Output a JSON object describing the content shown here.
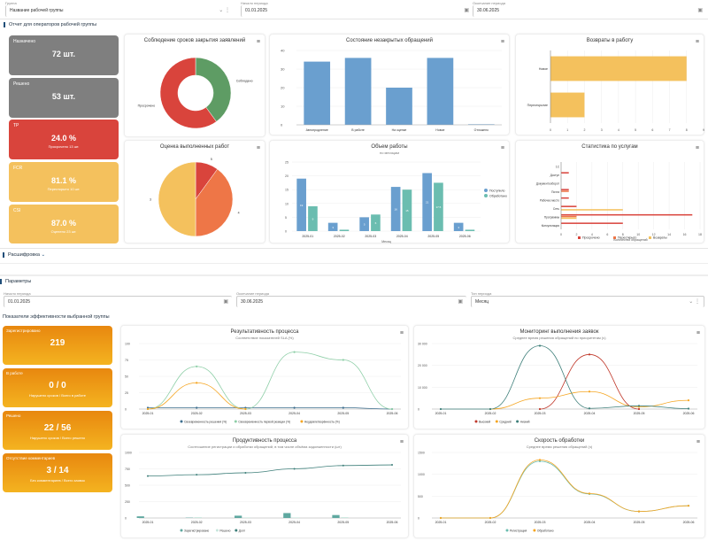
{
  "filters": {
    "group": {
      "label": "Группа",
      "value": "Название рабочей группы"
    },
    "date_from": {
      "label": "Начало периода",
      "value": "01.01.2025"
    },
    "date_to": {
      "label": "Окончание периода",
      "value": "30.06.2025"
    }
  },
  "section1": {
    "title": "Отчет для операторов рабочей группы"
  },
  "kpi": [
    {
      "title": "Назначено",
      "value": "72 шт.",
      "sub": "",
      "color": "#7f7f7f"
    },
    {
      "title": "Решено",
      "value": "53 шт.",
      "sub": "",
      "color": "#7f7f7f"
    },
    {
      "title": "TP",
      "value": "24.0 %",
      "sub": "Просрочено 13 шт.",
      "color": "#d9443c"
    },
    {
      "title": "FCR",
      "value": "81.1 %",
      "sub": "Переоткрыто 10 шт.",
      "color": "#f4c15d"
    },
    {
      "title": "CSI",
      "value": "87.0 %",
      "sub": "Оценено 23 шт.",
      "color": "#f4c15d"
    }
  ],
  "charts": {
    "donut": {
      "title": "Соблюдение сроков закрытия заявлений",
      "menu": "≡",
      "labels": [
        "Соблюдено",
        "Просрочено"
      ],
      "values": [
        40,
        60
      ],
      "colors": [
        "#5e9c64",
        "#d9443c"
      ]
    },
    "pie": {
      "title": "Оценка выполненных работ",
      "menu": "≡",
      "labels": [
        "5",
        "4",
        "3"
      ],
      "values": [
        10,
        40,
        50
      ],
      "colors": [
        "#d9443c",
        "#ee7647",
        "#f4c15d"
      ]
    },
    "bar": {
      "title": "Состояние незакрытых обращений",
      "menu": "≡",
      "categories": [
        "Автопродление",
        "В работе",
        "На оценке",
        "Новое",
        "Отложено"
      ],
      "values": [
        34,
        36,
        20,
        36,
        0.3
      ],
      "yticks": [
        "0",
        "10",
        "20",
        "30",
        "40"
      ],
      "ymax": 40,
      "color": "#6a9fcf"
    },
    "hbar": {
      "title": "Возвраты в работу",
      "menu": "≡",
      "categories": [
        "Новое",
        "Переоткрытие"
      ],
      "values": [
        8,
        2
      ],
      "xticks": [
        "0",
        "1",
        "2",
        "3",
        "4",
        "5",
        "6",
        "7",
        "8",
        "9"
      ],
      "xmax": 9,
      "color": "#f4c15d"
    },
    "volume": {
      "title": "Объем работы",
      "subtitle": "по месяцам",
      "xlabel": "Месяц",
      "menu": "≡",
      "categories": [
        "2025-01",
        "2025-02",
        "2025-03",
        "2025-04",
        "2025-05",
        "2025-06"
      ],
      "series": [
        {
          "name": "Поступило",
          "values": [
            19,
            3,
            5,
            16,
            21,
            3
          ],
          "color": "#6a9fcf"
        },
        {
          "name": "Обработано",
          "values": [
            9,
            0.5,
            6,
            15,
            17.5,
            0.5
          ],
          "color": "#6bbdb0"
        }
      ],
      "yticks": [
        "0",
        "5",
        "10",
        "15",
        "20",
        "25"
      ],
      "ymax": 25
    },
    "services": {
      "title": "Статистика по услугам",
      "xlabel": "Количество обращений",
      "menu": "≡",
      "categories": [
        "1С",
        "Доступ",
        "Документооборот",
        "Почта",
        "Рабочее место",
        "Сеть",
        "Программы",
        "Консультация"
      ],
      "series": [
        {
          "name": "Просрочено",
          "color": "#d9443c",
          "values": [
            0,
            1,
            0,
            1,
            1,
            2,
            17,
            8
          ]
        },
        {
          "name": "Переоткрыто",
          "color": "#ee7647",
          "values": [
            0,
            0,
            0,
            1,
            0,
            0,
            2,
            0
          ]
        },
        {
          "name": "Возвраты",
          "color": "#f4c15d",
          "values": [
            0,
            0,
            0,
            0,
            0,
            8,
            2,
            0
          ]
        }
      ],
      "xticks": [
        "0",
        "2",
        "4",
        "6",
        "8",
        "10",
        "12",
        "14",
        "16",
        "18"
      ],
      "xmax": 18
    }
  },
  "section2": {
    "title": "Расшифровка",
    "chevron": "⌄"
  },
  "section3": {
    "title": "Параметры"
  },
  "filters2": {
    "date_from": {
      "label": "Начало периода",
      "value": "01.01.2025"
    },
    "date_to": {
      "label": "Окончание периода",
      "value": "30.06.2025"
    },
    "period": {
      "label": "Тип периода",
      "value": "Месяц"
    }
  },
  "section4": {
    "title": "Показатели эффективности выбранной группы"
  },
  "ocards": [
    {
      "title": "Зарегистрировано",
      "value": "219",
      "sub": ""
    },
    {
      "title": "В работе",
      "value": "0 / 0",
      "sub": "Нарушено сроков / Всего в работе"
    },
    {
      "title": "Решено",
      "value": "22 / 56",
      "sub": "Нарушено сроков / Всего решено"
    },
    {
      "title": "Отсутствие комментариев",
      "value": "3 / 14",
      "sub": "Без комментариев / Всего заявок"
    }
  ],
  "lines": {
    "result": {
      "title": "Результативность процесса",
      "subtitle": "Соответствие показателей SLA (%)",
      "menu": "≡",
      "categories": [
        "2025-01",
        "2025-02",
        "2025-03",
        "2025-04",
        "2025-05",
        "2025-06"
      ],
      "yticks": [
        "0",
        "25",
        "50",
        "75",
        "100"
      ],
      "ymax": 100,
      "series": [
        {
          "name": "Своевременность решения (%)",
          "color": "#3e6f8f",
          "values": [
            2,
            2,
            2,
            2,
            2,
            0
          ]
        },
        {
          "name": "Своевременность первой реакции (%)",
          "color": "#8fcfa8",
          "values": [
            0,
            65,
            0,
            87,
            75,
            0
          ]
        },
        {
          "name": "Неудовлетворённость (%)",
          "color": "#f5a623",
          "values": [
            0,
            40,
            0,
            null,
            null,
            null
          ]
        }
      ]
    },
    "monitor": {
      "title": "Мониторинг выполнения заявок",
      "subtitle": "Среднее время решения обращений по приоритетам (ч)",
      "menu": "≡",
      "categories": [
        "2025-01",
        "2025-02",
        "2025-03",
        "2025-04",
        "2025-05",
        "2025-06"
      ],
      "yticks": [
        "0",
        "10 000",
        "20 000",
        "30 000"
      ],
      "ymax": 30000,
      "series": [
        {
          "name": "Высокий",
          "color": "#c0392b",
          "values": [
            null,
            null,
            0,
            25000,
            0,
            null
          ]
        },
        {
          "name": "Средний",
          "color": "#f5a623",
          "values": [
            null,
            0,
            5000,
            8000,
            1000,
            4000
          ]
        },
        {
          "name": "Низкий",
          "color": "#3e7f7a",
          "values": [
            0,
            0,
            29000,
            300,
            1500,
            200
          ]
        }
      ]
    },
    "productivity": {
      "title": "Продуктивность процесса",
      "subtitle": "Соотношение регистрации и обработки обращений, в том числе объёма задолженности (шт)",
      "menu": "≡",
      "categories": [
        "2025-01",
        "2025-02",
        "2025-03",
        "2025-04",
        "2025-05",
        "2025-06"
      ],
      "yticks": [
        "0",
        "250",
        "500",
        "750",
        "1000"
      ],
      "ymax": 1000,
      "bars": [
        {
          "name": "Зарегистрировано",
          "color": "#5fa8a0",
          "values": [
            25,
            5,
            35,
            75,
            45,
            0
          ]
        },
        {
          "name": "Решено",
          "color": "#c8e6dd",
          "values": [
            2,
            12,
            8,
            8,
            12,
            0
          ]
        }
      ],
      "line": {
        "name": "Долг",
        "color": "#3e7f7a",
        "values": [
          640,
          660,
          690,
          750,
          800,
          810
        ]
      }
    },
    "speed": {
      "title": "Скорость обработки",
      "subtitle": "Среднее время решения обращений (ч)",
      "menu": "≡",
      "categories": [
        "2025-01",
        "2025-02",
        "2025-03",
        "2025-04",
        "2025-05",
        "2025-06"
      ],
      "yticks": [
        "0",
        "500",
        "1000",
        "1500"
      ],
      "ymax": 1500,
      "series": [
        {
          "name": "Регистрация",
          "color": "#6bbdb0",
          "values": [
            0,
            0,
            1300,
            550,
            150,
            280
          ]
        },
        {
          "name": "Обработано",
          "color": "#f5a623",
          "values": [
            0,
            0,
            1330,
            560,
            150,
            280
          ]
        }
      ]
    }
  }
}
